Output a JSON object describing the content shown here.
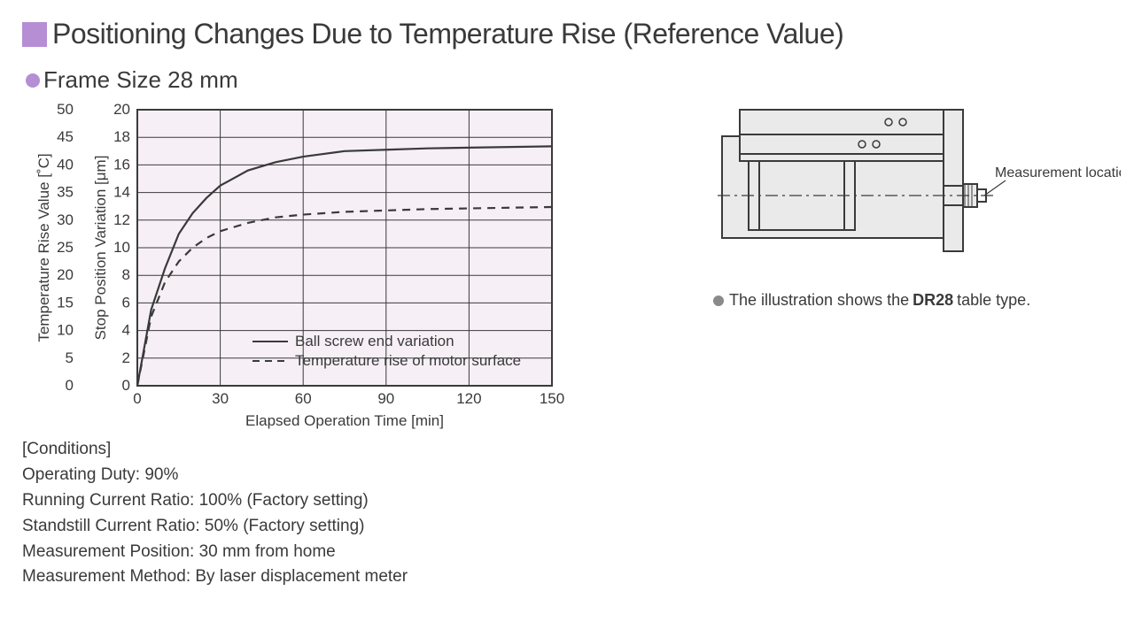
{
  "title": {
    "text": "Positioning Changes Due to Temperature Rise (Reference Value)",
    "square_color": "#b58ed4",
    "fontsize": 32
  },
  "subtitle": {
    "text": "Frame Size 28 mm",
    "dot_color": "#b58ed4",
    "fontsize": 26
  },
  "chart": {
    "type": "line",
    "background_color": "#f6f0f6",
    "grid_color": "#3a3a3a",
    "border_color": "#3a3a3a",
    "x_axis": {
      "label": "Elapsed Operation Time [min]",
      "min": 0,
      "max": 150,
      "ticks": [
        0,
        30,
        60,
        90,
        120,
        150
      ],
      "label_fontsize": 17
    },
    "y_axis_left_outer": {
      "label": "Temperature Rise Value [˚C]",
      "min": 0,
      "max": 50,
      "ticks": [
        0,
        5,
        10,
        15,
        20,
        25,
        30,
        35,
        40,
        45,
        50
      ],
      "label_fontsize": 17
    },
    "y_axis_left_inner": {
      "label": "Stop Position Variation [μm]",
      "min": 0,
      "max": 20,
      "ticks": [
        0,
        2,
        4,
        6,
        8,
        10,
        12,
        14,
        16,
        18,
        20
      ],
      "label_fontsize": 17
    },
    "series": [
      {
        "name": "Ball screw end variation",
        "color": "#3a3a3a",
        "dash": "solid",
        "width": 2.2,
        "axis": "inner",
        "points": [
          [
            0,
            0
          ],
          [
            5,
            5.5
          ],
          [
            10,
            8.5
          ],
          [
            15,
            11
          ],
          [
            20,
            12.5
          ],
          [
            25,
            13.6
          ],
          [
            30,
            14.5
          ],
          [
            40,
            15.6
          ],
          [
            50,
            16.2
          ],
          [
            60,
            16.6
          ],
          [
            75,
            17
          ],
          [
            90,
            17.1
          ],
          [
            105,
            17.2
          ],
          [
            120,
            17.25
          ],
          [
            135,
            17.3
          ],
          [
            150,
            17.35
          ]
        ]
      },
      {
        "name": "Temperature rise of motor surface",
        "color": "#3a3a3a",
        "dash": "dashed",
        "width": 2.2,
        "axis": "inner",
        "points": [
          [
            0,
            0
          ],
          [
            5,
            5
          ],
          [
            10,
            7.5
          ],
          [
            15,
            9
          ],
          [
            20,
            10
          ],
          [
            25,
            10.7
          ],
          [
            30,
            11.2
          ],
          [
            40,
            11.8
          ],
          [
            50,
            12.2
          ],
          [
            60,
            12.4
          ],
          [
            75,
            12.6
          ],
          [
            90,
            12.7
          ],
          [
            105,
            12.8
          ],
          [
            120,
            12.85
          ],
          [
            135,
            12.9
          ],
          [
            150,
            12.95
          ]
        ]
      }
    ],
    "legend": {
      "items": [
        "Ball screw end variation",
        "Temperature rise of motor surface"
      ],
      "fontsize": 17
    }
  },
  "diagram": {
    "label": "Measurement location",
    "caption_prefix": "The illustration shows the ",
    "caption_bold": "DR28",
    "caption_suffix": " table type.",
    "fill": "#eaeaea",
    "stroke": "#3a3a3a",
    "caption_dot_color": "#8a8a8a"
  },
  "conditions": {
    "header": "[Conditions]",
    "lines": [
      "Operating Duty: 90%",
      "Running Current Ratio: 100% (Factory setting)",
      "Standstill Current Ratio: 50% (Factory setting)",
      "Measurement Position: 30 mm from home",
      "Measurement Method:  By laser displacement meter"
    ],
    "fontsize": 19
  }
}
